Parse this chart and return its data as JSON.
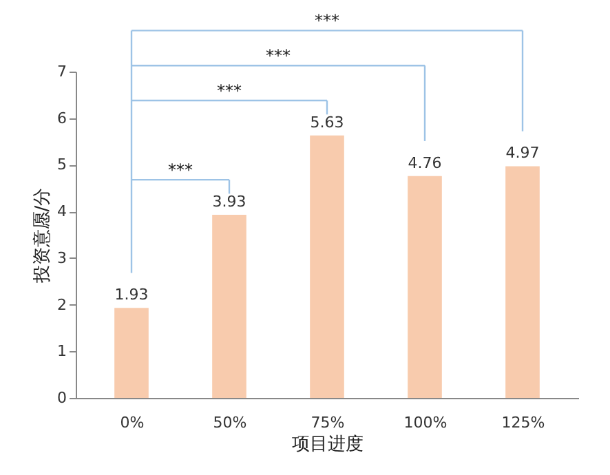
{
  "chart_data": {
    "type": "bar",
    "xlabel": "项目进度",
    "ylabel": "投资意愿/分",
    "categories": [
      "0%",
      "50%",
      "75%",
      "100%",
      "125%"
    ],
    "values": [
      1.93,
      3.93,
      5.63,
      4.76,
      4.97
    ],
    "color": "#f8cbad",
    "data_labels": true,
    "grid": false,
    "ylim": [
      0,
      7
    ],
    "yticks": [
      0,
      1,
      2,
      3,
      4,
      5,
      6,
      7
    ],
    "annotations": [
      "***",
      "***",
      "***",
      "***"
    ]
  }
}
